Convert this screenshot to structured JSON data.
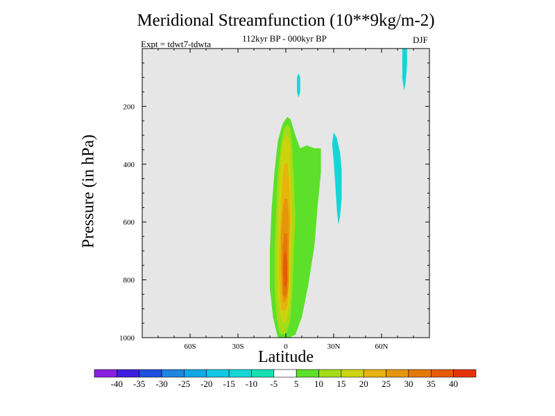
{
  "chart_data": {
    "type": "contour",
    "title": "Meridional Streamfunction (10**9kg/m-2)",
    "subtitle": "112kyr BP - 000kyr BP",
    "experiment": "Expt = tdwt7-tdwta",
    "season": "DJF",
    "xlabel": "Latitude",
    "ylabel": "Pressure (in hPa)",
    "xlim": [
      -90,
      90
    ],
    "ylim": [
      1000,
      0
    ],
    "x_ticks": [
      {
        "value": -60,
        "label": "60S"
      },
      {
        "value": -30,
        "label": "30S"
      },
      {
        "value": 0,
        "label": "0"
      },
      {
        "value": 30,
        "label": "30N"
      },
      {
        "value": 60,
        "label": "60N"
      }
    ],
    "y_ticks": [
      {
        "value": 200,
        "label": "200"
      },
      {
        "value": 400,
        "label": "400"
      },
      {
        "value": 600,
        "label": "600"
      },
      {
        "value": 800,
        "label": "800"
      },
      {
        "value": 1000,
        "label": "1000"
      }
    ],
    "background_color": "#e6e6e6",
    "colorbar": {
      "labels": [
        "-40",
        "-35",
        "-30",
        "-25",
        "-20",
        "-15",
        "-10",
        "-5",
        "5",
        "10",
        "15",
        "20",
        "25",
        "30",
        "35",
        "40"
      ],
      "colors": [
        "#8a1ee0",
        "#3d1ee0",
        "#1e4fe0",
        "#1e84e0",
        "#0fa8e6",
        "#0fc8e6",
        "#14d6d6",
        "#14e0b4",
        "#ffffff",
        "#5ce02a",
        "#a3dc14",
        "#cdd30f",
        "#e6b40a",
        "#e6960a",
        "#e6780a",
        "#e65a0a",
        "#e6320a"
      ]
    },
    "regions": [
      {
        "level": "5 to 10",
        "color": "#5ce02a",
        "points": [
          [
            -5,
            1000
          ],
          [
            -8,
            930
          ],
          [
            -10,
            830
          ],
          [
            -10,
            700
          ],
          [
            -9,
            560
          ],
          [
            -7,
            420
          ],
          [
            -5,
            320
          ],
          [
            -2,
            260
          ],
          [
            1,
            236
          ],
          [
            3,
            245
          ],
          [
            6,
            300
          ],
          [
            9,
            345
          ],
          [
            13,
            335
          ],
          [
            18,
            345
          ],
          [
            22,
            345
          ],
          [
            22,
            430
          ],
          [
            20,
            540
          ],
          [
            18,
            680
          ],
          [
            14,
            820
          ],
          [
            10,
            930
          ],
          [
            6,
            990
          ],
          [
            2,
            1000
          ]
        ]
      },
      {
        "level": "10 to 15",
        "color": "#a3dc14",
        "points": [
          [
            -4,
            985
          ],
          [
            -6,
            920
          ],
          [
            -7,
            820
          ],
          [
            -7,
            700
          ],
          [
            -6,
            560
          ],
          [
            -5,
            430
          ],
          [
            -3,
            330
          ],
          [
            -1,
            275
          ],
          [
            1,
            262
          ],
          [
            3,
            280
          ],
          [
            4,
            340
          ],
          [
            5,
            450
          ],
          [
            6,
            580
          ],
          [
            5,
            720
          ],
          [
            4,
            850
          ],
          [
            3,
            935
          ],
          [
            1,
            975
          ],
          [
            -1,
            990
          ]
        ]
      },
      {
        "level": "15 to 20",
        "color": "#cdd30f",
        "points": [
          [
            -3,
            940
          ],
          [
            -5,
            860
          ],
          [
            -5,
            740
          ],
          [
            -5,
            600
          ],
          [
            -4,
            470
          ],
          [
            -3,
            370
          ],
          [
            -1,
            310
          ],
          [
            1,
            298
          ],
          [
            3,
            340
          ],
          [
            3,
            460
          ],
          [
            4,
            600
          ],
          [
            3,
            740
          ],
          [
            3,
            860
          ],
          [
            1,
            930
          ],
          [
            -1,
            950
          ]
        ]
      },
      {
        "level": "20 to 25",
        "color": "#e6b40a",
        "points": [
          [
            -3,
            900
          ],
          [
            -4,
            800
          ],
          [
            -4,
            680
          ],
          [
            -3,
            560
          ],
          [
            -2,
            450
          ],
          [
            -1,
            400
          ],
          [
            1,
            395
          ],
          [
            2,
            460
          ],
          [
            3,
            580
          ],
          [
            2,
            700
          ],
          [
            2,
            820
          ],
          [
            1,
            890
          ],
          [
            -1,
            910
          ]
        ]
      },
      {
        "level": "25 to 30",
        "color": "#e6960a",
        "points": [
          [
            -2,
            870
          ],
          [
            -3,
            760
          ],
          [
            -3,
            650
          ],
          [
            -2,
            560
          ],
          [
            -1,
            520
          ],
          [
            1,
            520
          ],
          [
            2,
            590
          ],
          [
            2,
            690
          ],
          [
            2,
            790
          ],
          [
            1,
            860
          ],
          [
            -1,
            880
          ]
        ]
      },
      {
        "level": "30 to 35",
        "color": "#e6780a",
        "points": [
          [
            -2,
            850
          ],
          [
            -2,
            760
          ],
          [
            -2,
            680
          ],
          [
            -1,
            640
          ],
          [
            1,
            640
          ],
          [
            1,
            700
          ],
          [
            1,
            780
          ],
          [
            1,
            840
          ],
          [
            0,
            860
          ]
        ]
      },
      {
        "level": "35 to 40",
        "color": "#e65a0a",
        "points": [
          [
            -1,
            820
          ],
          [
            -2,
            760
          ],
          [
            -1,
            710
          ],
          [
            0,
            700
          ],
          [
            1,
            740
          ],
          [
            1,
            800
          ],
          [
            0,
            830
          ]
        ]
      },
      {
        "level": "-10 to -5",
        "color": "#14d6d6",
        "points": [
          [
            30,
            290
          ],
          [
            32,
            310
          ],
          [
            34,
            360
          ],
          [
            35,
            420
          ],
          [
            35,
            520
          ],
          [
            34,
            580
          ],
          [
            33,
            610
          ],
          [
            32,
            560
          ],
          [
            31,
            470
          ],
          [
            30,
            390
          ],
          [
            29,
            330
          ]
        ]
      },
      {
        "level": "-10 to -5",
        "color": "#14d6d6",
        "points": [
          [
            8,
            85
          ],
          [
            9,
            100
          ],
          [
            9,
            150
          ],
          [
            8,
            170
          ],
          [
            7,
            150
          ],
          [
            7,
            100
          ]
        ]
      },
      {
        "level": "-10 to -5",
        "color": "#14d6d6",
        "points": [
          [
            73,
            0
          ],
          [
            76,
            0
          ],
          [
            76,
            60
          ],
          [
            75,
            120
          ],
          [
            74,
            145
          ],
          [
            73,
            100
          ],
          [
            73,
            50
          ]
        ]
      }
    ]
  }
}
